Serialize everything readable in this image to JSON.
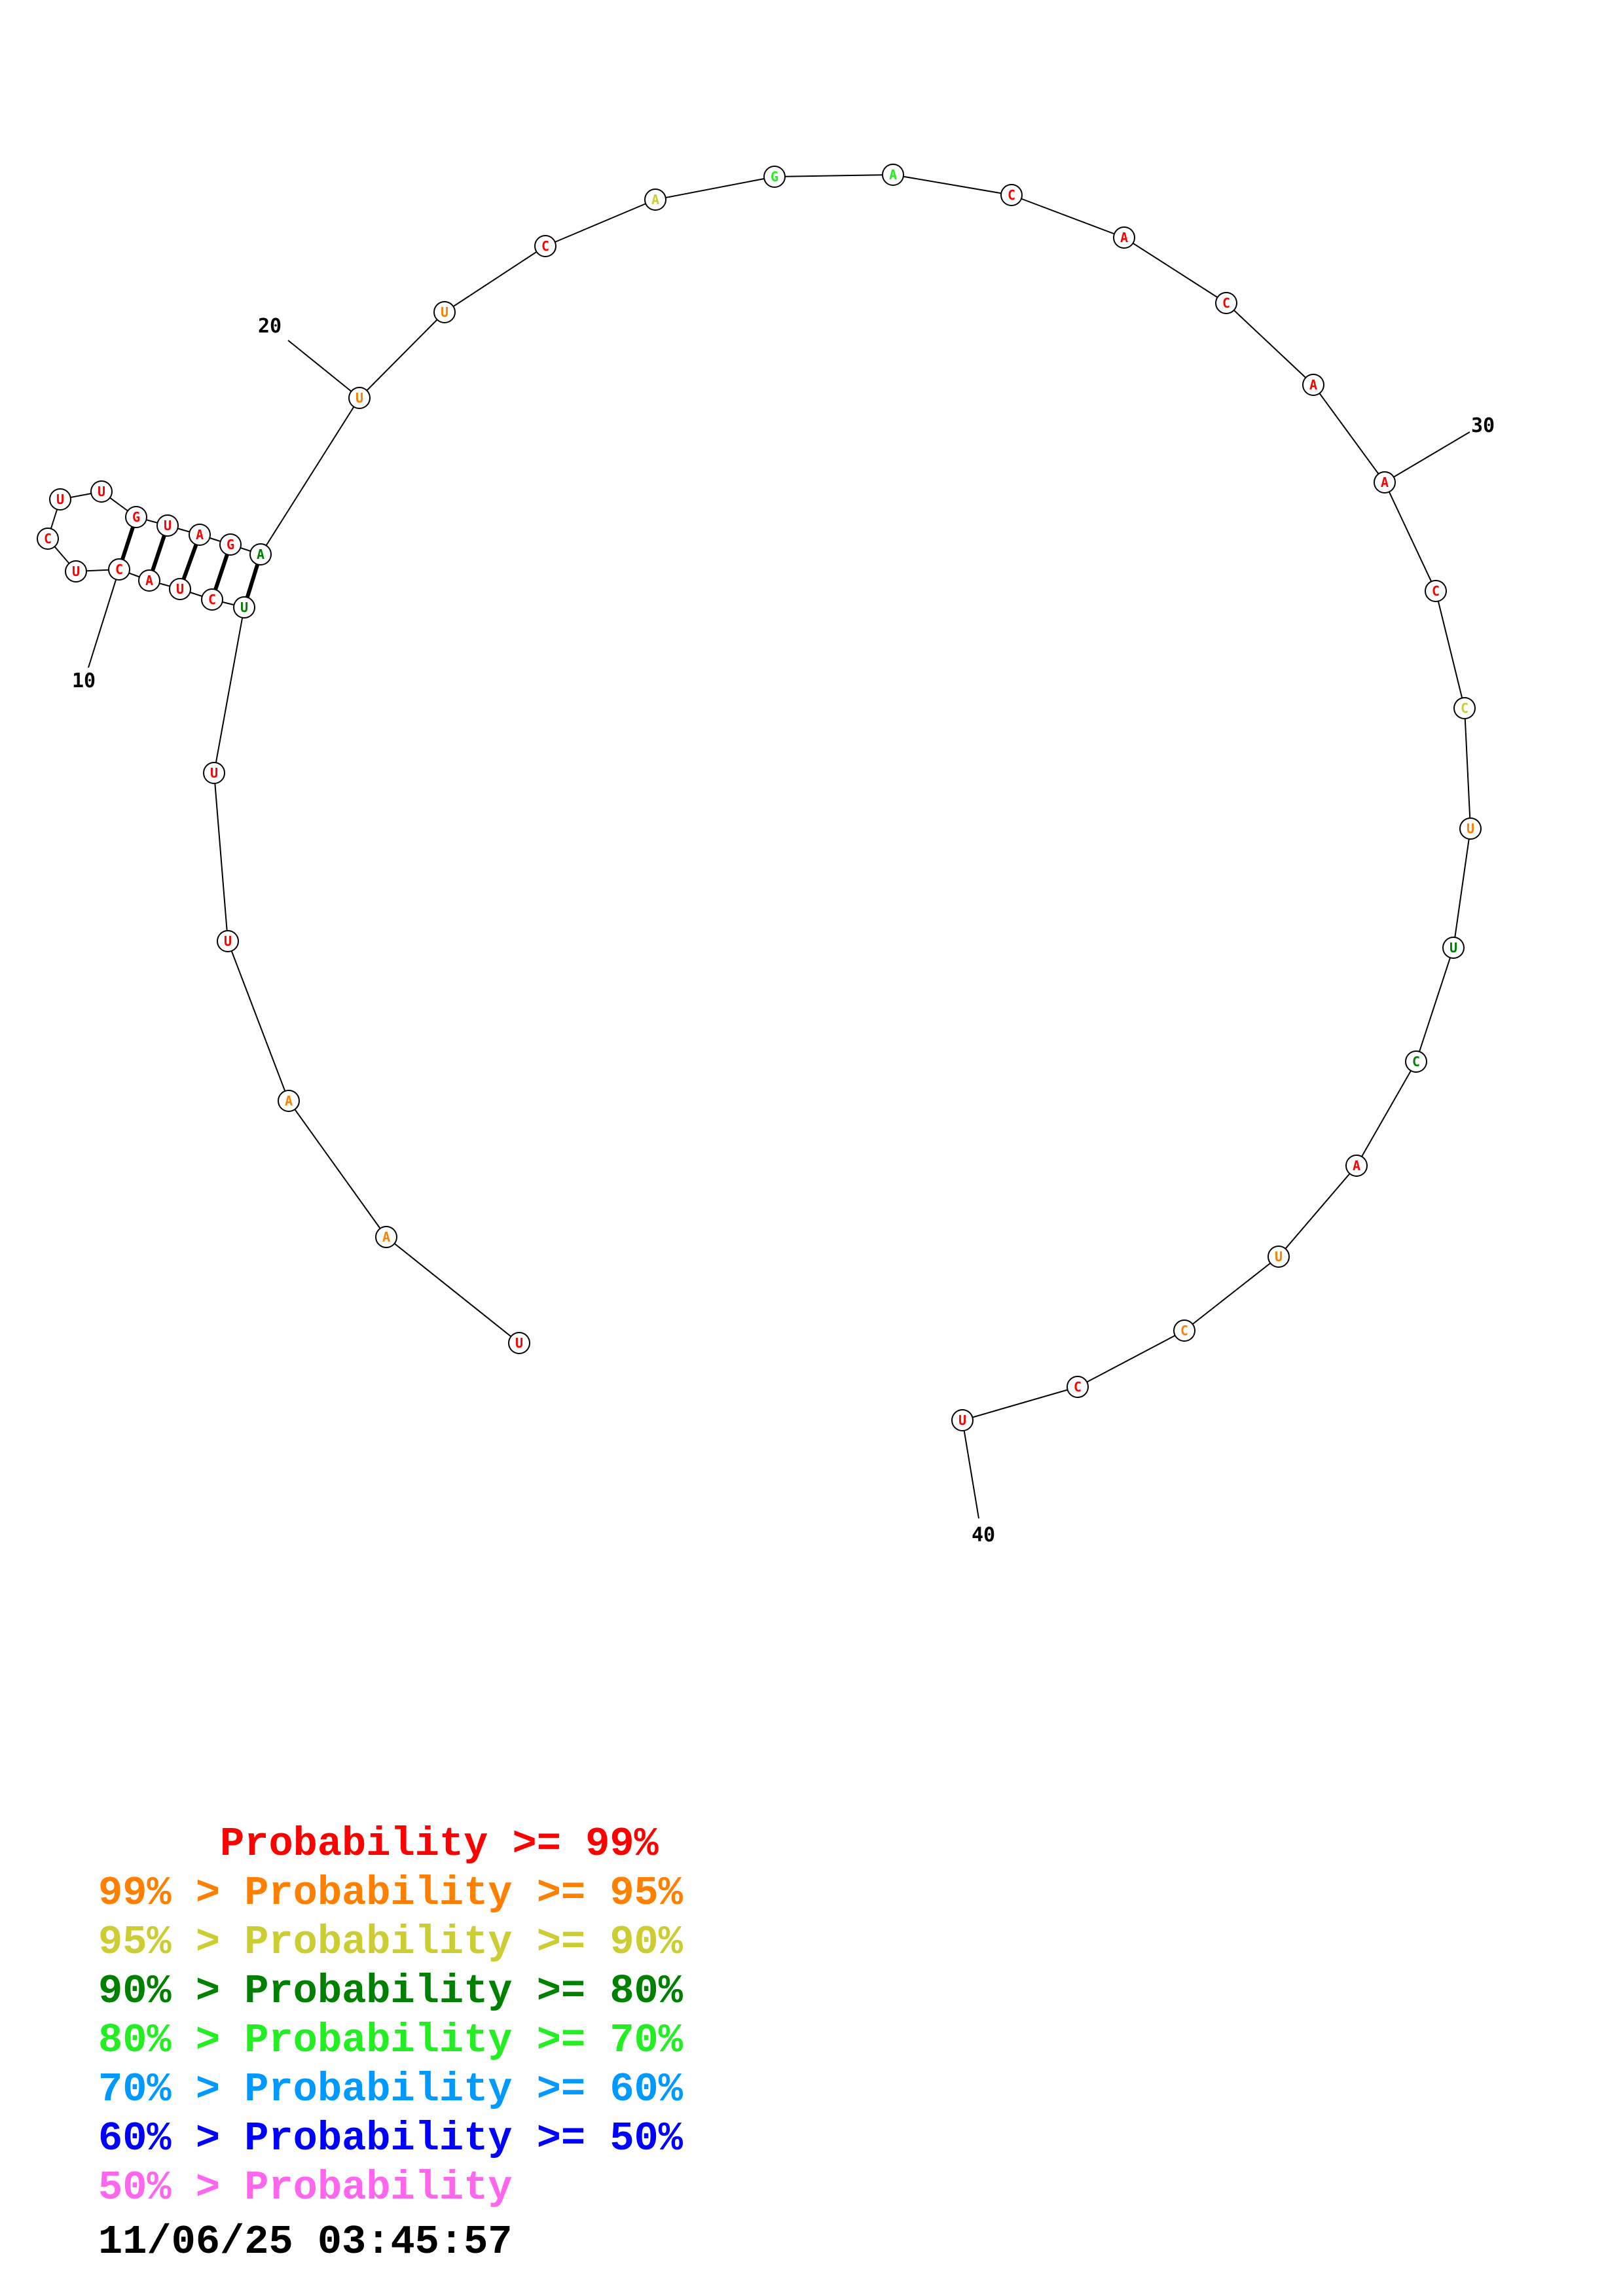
{
  "colors": {
    "p99": "#ff0000",
    "p95": "#ff8000",
    "p90": "#cccc33",
    "p80": "#008000",
    "p70": "#22ee22",
    "p60": "#0099ff",
    "p50": "#0000ff",
    "plow": "#ff66ee"
  },
  "nucleotides": [
    {
      "n": 1,
      "base": "U",
      "conf": "p99"
    },
    {
      "n": 2,
      "base": "A",
      "conf": "p95"
    },
    {
      "n": 3,
      "base": "A",
      "conf": "p95"
    },
    {
      "n": 4,
      "base": "U",
      "conf": "p99"
    },
    {
      "n": 5,
      "base": "U",
      "conf": "p99"
    },
    {
      "n": 6,
      "base": "U",
      "conf": "p80"
    },
    {
      "n": 7,
      "base": "C",
      "conf": "p99"
    },
    {
      "n": 8,
      "base": "U",
      "conf": "p99"
    },
    {
      "n": 9,
      "base": "A",
      "conf": "p99"
    },
    {
      "n": 10,
      "base": "C",
      "conf": "p99"
    },
    {
      "n": 11,
      "base": "U",
      "conf": "p99"
    },
    {
      "n": 12,
      "base": "C",
      "conf": "p99"
    },
    {
      "n": 13,
      "base": "U",
      "conf": "p99"
    },
    {
      "n": 14,
      "base": "U",
      "conf": "p99"
    },
    {
      "n": 15,
      "base": "G",
      "conf": "p99"
    },
    {
      "n": 16,
      "base": "U",
      "conf": "p99"
    },
    {
      "n": 17,
      "base": "A",
      "conf": "p99"
    },
    {
      "n": 18,
      "base": "G",
      "conf": "p99"
    },
    {
      "n": 19,
      "base": "A",
      "conf": "p80"
    },
    {
      "n": 20,
      "base": "U",
      "conf": "p95"
    },
    {
      "n": 21,
      "base": "U",
      "conf": "p95"
    },
    {
      "n": 22,
      "base": "C",
      "conf": "p99"
    },
    {
      "n": 23,
      "base": "A",
      "conf": "p90"
    },
    {
      "n": 24,
      "base": "G",
      "conf": "p70"
    },
    {
      "n": 25,
      "base": "A",
      "conf": "p70"
    },
    {
      "n": 26,
      "base": "C",
      "conf": "p99"
    },
    {
      "n": 27,
      "base": "A",
      "conf": "p99"
    },
    {
      "n": 28,
      "base": "C",
      "conf": "p99"
    },
    {
      "n": 29,
      "base": "A",
      "conf": "p99"
    },
    {
      "n": 30,
      "base": "A",
      "conf": "p99"
    },
    {
      "n": 31,
      "base": "C",
      "conf": "p99"
    },
    {
      "n": 32,
      "base": "C",
      "conf": "p90"
    },
    {
      "n": 33,
      "base": "U",
      "conf": "p95"
    },
    {
      "n": 34,
      "base": "U",
      "conf": "p80"
    },
    {
      "n": 35,
      "base": "C",
      "conf": "p80"
    },
    {
      "n": 36,
      "base": "A",
      "conf": "p99"
    },
    {
      "n": 37,
      "base": "U",
      "conf": "p95"
    },
    {
      "n": 38,
      "base": "C",
      "conf": "p95"
    },
    {
      "n": 39,
      "base": "C",
      "conf": "p99"
    },
    {
      "n": 40,
      "base": "U",
      "conf": "p99"
    }
  ],
  "pairs": [
    [
      6,
      19
    ],
    [
      7,
      18
    ],
    [
      8,
      17
    ],
    [
      9,
      16
    ],
    [
      10,
      15
    ]
  ],
  "position_labels": [
    "10",
    "20",
    "30",
    "40"
  ],
  "legend": [
    {
      "prefix": "     ",
      "text": "Probability >= 99%",
      "color": "p99"
    },
    {
      "prefix": "99% > ",
      "text": "Probability >= 95%",
      "color": "p95"
    },
    {
      "prefix": "95% > ",
      "text": "Probability >= 90%",
      "color": "p90"
    },
    {
      "prefix": "90% > ",
      "text": "Probability >= 80%",
      "color": "p80"
    },
    {
      "prefix": "80% > ",
      "text": "Probability >= 70%",
      "color": "p70"
    },
    {
      "prefix": "70% > ",
      "text": "Probability >= 60%",
      "color": "p60"
    },
    {
      "prefix": "60% > ",
      "text": "Probability >= 50%",
      "color": "p50"
    },
    {
      "prefix": "50% > ",
      "text": "Probability",
      "color": "plow"
    }
  ],
  "timestamp": "11/06/25 03:45:57"
}
